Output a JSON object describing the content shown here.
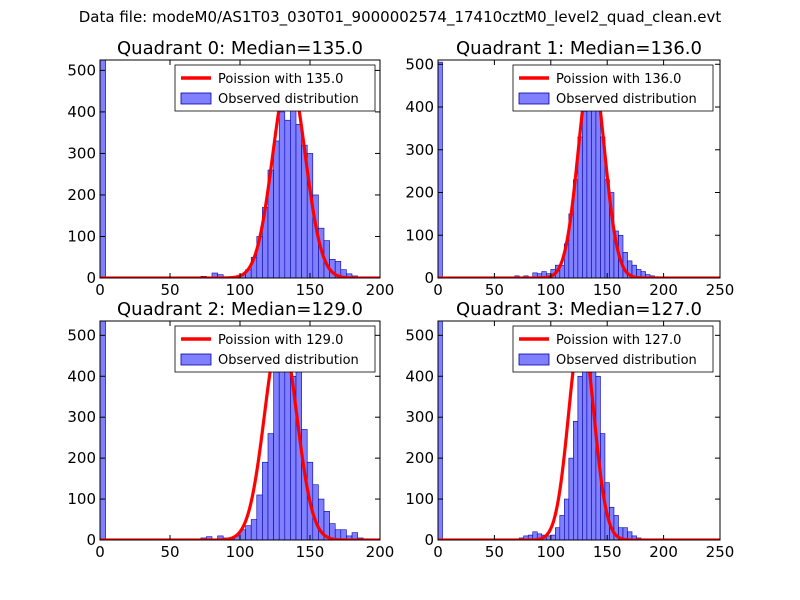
{
  "figure": {
    "suptitle": "Data file: modeM0/AS1T03_030T01_9000002574_17410cztM0_level2_quad_clean.evt"
  },
  "colors": {
    "bars": "#8080ff",
    "bar_edge": "#0000aa",
    "poisson": "#ff0000"
  },
  "chart_data": [
    {
      "type": "bar",
      "title": "Quadrant 0: Median=135.0",
      "xlim": [
        0,
        200
      ],
      "ylim": [
        0,
        525
      ],
      "xticks": [
        0,
        50,
        100,
        150,
        200
      ],
      "yticks": [
        0,
        100,
        200,
        300,
        400,
        500
      ],
      "legend": [
        "Poission with 135.0",
        "Observed distribution"
      ],
      "poisson_mean": 135.0,
      "poisson_peak": 490,
      "poisson_sigma": 11.6,
      "bin_width": 4,
      "bins": [
        [
          0,
          525
        ],
        [
          72,
          4
        ],
        [
          80,
          12
        ],
        [
          84,
          8
        ],
        [
          92,
          3
        ],
        [
          96,
          4
        ],
        [
          100,
          8
        ],
        [
          104,
          20
        ],
        [
          108,
          50
        ],
        [
          112,
          100
        ],
        [
          116,
          170
        ],
        [
          120,
          260
        ],
        [
          124,
          330
        ],
        [
          128,
          400
        ],
        [
          132,
          380
        ],
        [
          136,
          450
        ],
        [
          140,
          370
        ],
        [
          144,
          320
        ],
        [
          148,
          300
        ],
        [
          152,
          200
        ],
        [
          156,
          120
        ],
        [
          160,
          90
        ],
        [
          164,
          45
        ],
        [
          168,
          40
        ],
        [
          172,
          20
        ],
        [
          176,
          10
        ],
        [
          180,
          5
        ],
        [
          184,
          2
        ]
      ]
    },
    {
      "type": "bar",
      "title": "Quadrant 1: Median=136.0",
      "xlim": [
        0,
        250
      ],
      "ylim": [
        0,
        510
      ],
      "xticks": [
        0,
        50,
        100,
        150,
        200,
        250
      ],
      "yticks": [
        0,
        100,
        200,
        300,
        400,
        500
      ],
      "legend": [
        "Poission with 136.0",
        "Observed distribution"
      ],
      "poisson_mean": 136.0,
      "poisson_peak": 495,
      "poisson_sigma": 11.6,
      "bin_width": 4,
      "bins": [
        [
          0,
          505
        ],
        [
          68,
          5
        ],
        [
          76,
          5
        ],
        [
          84,
          12
        ],
        [
          88,
          10
        ],
        [
          92,
          15
        ],
        [
          96,
          10
        ],
        [
          100,
          20
        ],
        [
          104,
          30
        ],
        [
          108,
          30
        ],
        [
          112,
          80
        ],
        [
          116,
          150
        ],
        [
          120,
          230
        ],
        [
          124,
          330
        ],
        [
          128,
          390
        ],
        [
          132,
          420
        ],
        [
          136,
          480
        ],
        [
          140,
          430
        ],
        [
          144,
          330
        ],
        [
          148,
          230
        ],
        [
          152,
          200
        ],
        [
          156,
          110
        ],
        [
          160,
          100
        ],
        [
          164,
          60
        ],
        [
          168,
          40
        ],
        [
          172,
          30
        ],
        [
          176,
          20
        ],
        [
          180,
          15
        ],
        [
          184,
          8
        ],
        [
          188,
          5
        ],
        [
          192,
          3
        ]
      ]
    },
    {
      "type": "bar",
      "title": "Quadrant 2: Median=129.0",
      "xlim": [
        0,
        200
      ],
      "ylim": [
        0,
        535
      ],
      "xticks": [
        0,
        50,
        100,
        150,
        200
      ],
      "yticks": [
        0,
        100,
        200,
        300,
        400,
        500
      ],
      "legend": [
        "Poission with 129.0",
        "Observed distribution"
      ],
      "poisson_mean": 129.0,
      "poisson_peak": 510,
      "poisson_sigma": 11.4,
      "bin_width": 4,
      "bins": [
        [
          0,
          535
        ],
        [
          72,
          5
        ],
        [
          76,
          8
        ],
        [
          84,
          10
        ],
        [
          88,
          5
        ],
        [
          92,
          3
        ],
        [
          96,
          10
        ],
        [
          100,
          25
        ],
        [
          104,
          35
        ],
        [
          108,
          50
        ],
        [
          112,
          110
        ],
        [
          116,
          190
        ],
        [
          120,
          260
        ],
        [
          124,
          410
        ],
        [
          128,
          510
        ],
        [
          132,
          500
        ],
        [
          136,
          400
        ],
        [
          140,
          440
        ],
        [
          144,
          270
        ],
        [
          148,
          190
        ],
        [
          152,
          135
        ],
        [
          156,
          100
        ],
        [
          160,
          70
        ],
        [
          164,
          40
        ],
        [
          168,
          25
        ],
        [
          172,
          25
        ],
        [
          176,
          10
        ],
        [
          180,
          18
        ],
        [
          184,
          5
        ],
        [
          188,
          3
        ]
      ]
    },
    {
      "type": "bar",
      "title": "Quadrant 3: Median=127.0",
      "xlim": [
        0,
        250
      ],
      "ylim": [
        0,
        535
      ],
      "xticks": [
        0,
        50,
        100,
        150,
        200,
        250
      ],
      "yticks": [
        0,
        100,
        200,
        300,
        400,
        500
      ],
      "legend": [
        "Poission with 127.0",
        "Observed distribution"
      ],
      "poisson_mean": 127.0,
      "poisson_peak": 510,
      "poisson_sigma": 11.2,
      "bin_width": 4,
      "bins": [
        [
          0,
          535
        ],
        [
          68,
          3
        ],
        [
          72,
          5
        ],
        [
          76,
          10
        ],
        [
          80,
          12
        ],
        [
          84,
          20
        ],
        [
          88,
          15
        ],
        [
          92,
          12
        ],
        [
          96,
          10
        ],
        [
          100,
          12
        ],
        [
          104,
          30
        ],
        [
          108,
          60
        ],
        [
          112,
          100
        ],
        [
          116,
          200
        ],
        [
          120,
          290
        ],
        [
          124,
          400
        ],
        [
          128,
          440
        ],
        [
          132,
          500
        ],
        [
          136,
          440
        ],
        [
          140,
          400
        ],
        [
          144,
          260
        ],
        [
          148,
          140
        ],
        [
          152,
          80
        ],
        [
          156,
          60
        ],
        [
          160,
          30
        ],
        [
          164,
          30
        ],
        [
          168,
          20
        ],
        [
          172,
          10
        ],
        [
          176,
          5
        ],
        [
          180,
          3
        ]
      ]
    }
  ]
}
